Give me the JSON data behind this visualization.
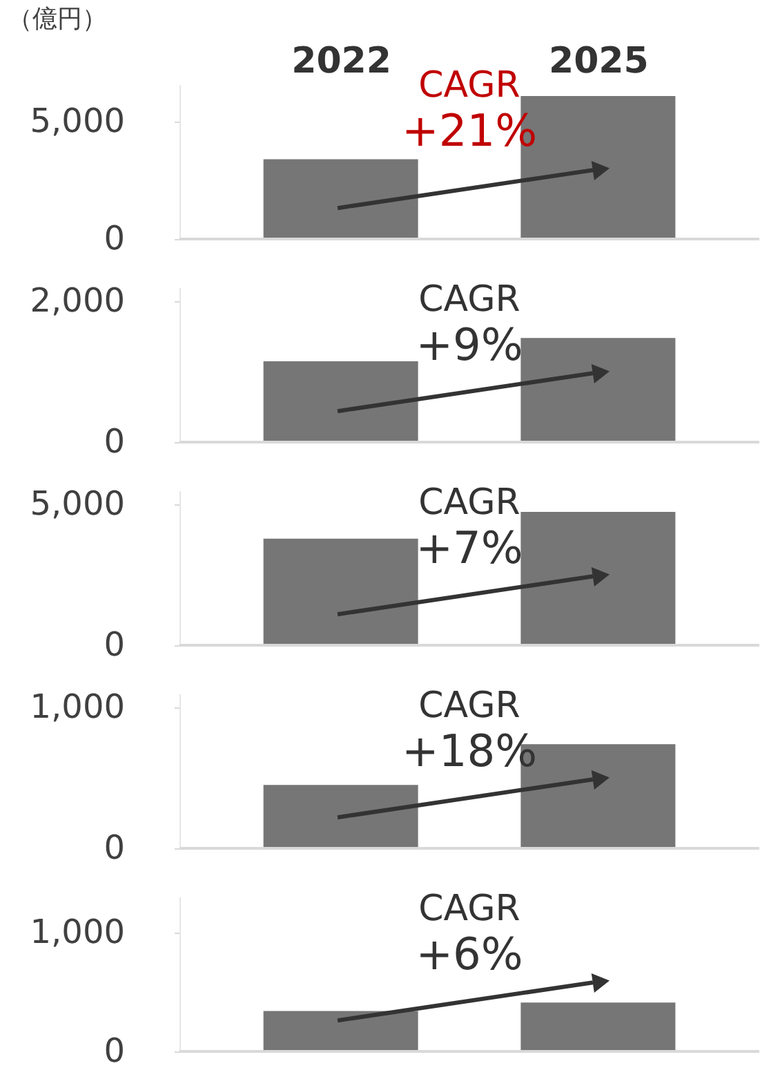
{
  "chart_data": [
    {
      "type": "bar",
      "ylabel": "（億円）",
      "categories": [
        "2022",
        "2025"
      ],
      "values": [
        3400,
        6100
      ],
      "color": "#767676",
      "ylim": [
        0,
        6600
      ],
      "yticks": [
        0,
        {
          "value": 5000,
          "label": "5,000"
        }
      ],
      "annotations": [
        "CAGR",
        "+21%"
      ],
      "grid": false
    },
    {
      "type": "bar",
      "categories": [
        "2022",
        "2025"
      ],
      "values": [
        1150,
        1480
      ],
      "color": "#767676",
      "ylim": [
        0,
        2200
      ],
      "yticks": [
        0,
        {
          "value": 2000,
          "label": "2,000"
        }
      ],
      "annotations": [
        "CAGR",
        "+9%"
      ],
      "grid": false,
      "tick_labels": "y"
    },
    {
      "type": "bar",
      "categories": [
        "2022",
        "2025"
      ],
      "values": [
        3790,
        4740
      ],
      "color": "#767676",
      "ylim": [
        0,
        5500
      ],
      "yticks": [
        0,
        {
          "value": 5000,
          "label": "5,000"
        }
      ],
      "annotations": [
        "CAGR",
        "+7%"
      ],
      "grid": false,
      "tick_labels": "y"
    },
    {
      "type": "bar",
      "categories": [
        "2022",
        "2025"
      ],
      "values": [
        450,
        740
      ],
      "color": "#767676",
      "ylim": [
        0,
        1100
      ],
      "yticks": [
        0,
        {
          "value": 1000,
          "label": "1,000"
        }
      ],
      "annotations": [
        "CAGR",
        "+18%"
      ],
      "grid": false,
      "tick_labels": "y"
    },
    {
      "type": "bar",
      "categories": [
        "2022",
        "2025"
      ],
      "values": [
        340,
        410
      ],
      "color": "#767676",
      "ylim": [
        0,
        1300
      ],
      "yticks": [
        0,
        {
          "value": 1000,
          "label": "1,000"
        }
      ],
      "annotations": [
        "CAGR",
        "+6%"
      ],
      "grid": false,
      "tick_labels": "y"
    }
  ]
}
